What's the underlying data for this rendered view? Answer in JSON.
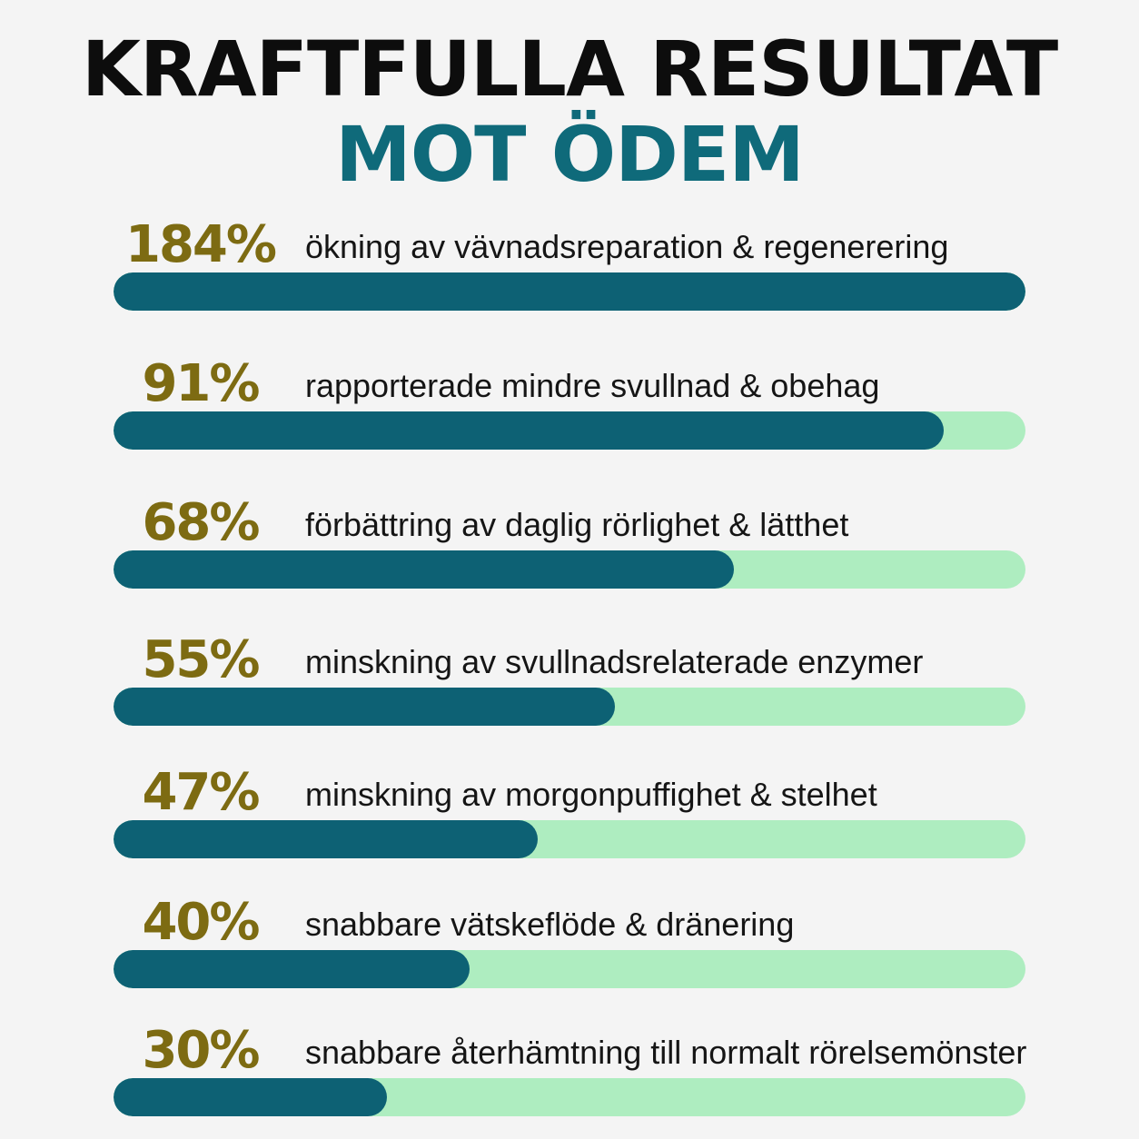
{
  "title": {
    "line1": "KRAFTFULLA RESULTAT",
    "line2": "MOT ÖDEM"
  },
  "colors": {
    "title_primary": "#0d0d0d",
    "title_accent": "#0f6a7a",
    "percent_text": "#7d6b12",
    "bar_fill": "#0d6174",
    "bar_track": "#aeedc0",
    "background": "#f4f4f4"
  },
  "chart_data": {
    "type": "bar",
    "orientation": "horizontal",
    "items": [
      {
        "value_label": "184%",
        "value": 184,
        "fill_fraction": 1.0,
        "label": "ökning av vävnadsreparation & regenerering"
      },
      {
        "value_label": "91%",
        "value": 91,
        "fill_fraction": 0.91,
        "label": "rapporterade mindre svullnad & obehag"
      },
      {
        "value_label": "68%",
        "value": 68,
        "fill_fraction": 0.68,
        "label": "förbättring av daglig rörlighet & lätthet"
      },
      {
        "value_label": "55%",
        "value": 55,
        "fill_fraction": 0.55,
        "label": "minskning av svullnadsrelaterade enzymer"
      },
      {
        "value_label": "47%",
        "value": 47,
        "fill_fraction": 0.465,
        "label": "minskning av morgonpuffighet & stelhet"
      },
      {
        "value_label": "40%",
        "value": 40,
        "fill_fraction": 0.39,
        "label": "snabbare vätskeflöde & dränering"
      },
      {
        "value_label": "30%",
        "value": 30,
        "fill_fraction": 0.3,
        "label": "snabbare återhämtning till normalt rörelsemönster"
      }
    ]
  }
}
